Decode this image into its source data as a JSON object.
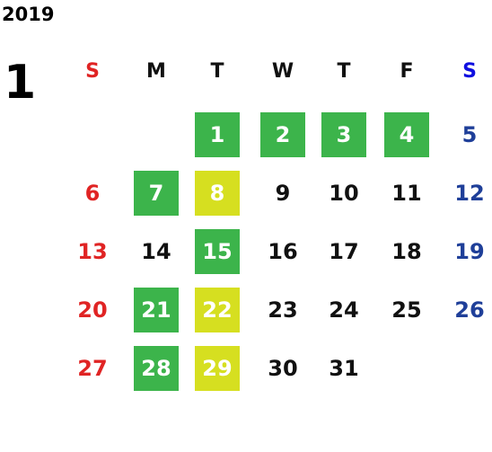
{
  "year": "2019",
  "month": "1",
  "weekdays": [
    "S",
    "M",
    "T",
    "W",
    "T",
    "F",
    "S"
  ],
  "weeks": [
    [
      null,
      null,
      {
        "day": 1,
        "fill": "#3cb44b"
      },
      {
        "day": 2,
        "fill": "#3cb44b"
      },
      {
        "day": 3,
        "fill": "#3cb44b"
      },
      {
        "day": 4,
        "fill": "#3cb44b"
      },
      {
        "day": 5
      }
    ],
    [
      {
        "day": 6
      },
      {
        "day": 7,
        "fill": "#3cb44b"
      },
      {
        "day": 8,
        "fill": "#d6df20"
      },
      {
        "day": 9
      },
      {
        "day": 10
      },
      {
        "day": 11
      },
      {
        "day": 12
      }
    ],
    [
      {
        "day": 13
      },
      {
        "day": 14
      },
      {
        "day": 15,
        "fill": "#3cb44b"
      },
      {
        "day": 16
      },
      {
        "day": 17
      },
      {
        "day": 18
      },
      {
        "day": 19
      }
    ],
    [
      {
        "day": 20
      },
      {
        "day": 21,
        "fill": "#3cb44b"
      },
      {
        "day": 22,
        "fill": "#d6df20"
      },
      {
        "day": 23
      },
      {
        "day": 24
      },
      {
        "day": 25
      },
      {
        "day": 26
      }
    ],
    [
      {
        "day": 27
      },
      {
        "day": 28,
        "fill": "#3cb44b"
      },
      {
        "day": 29,
        "fill": "#d6df20"
      },
      {
        "day": 30
      },
      {
        "day": 31
      },
      null,
      null
    ]
  ]
}
